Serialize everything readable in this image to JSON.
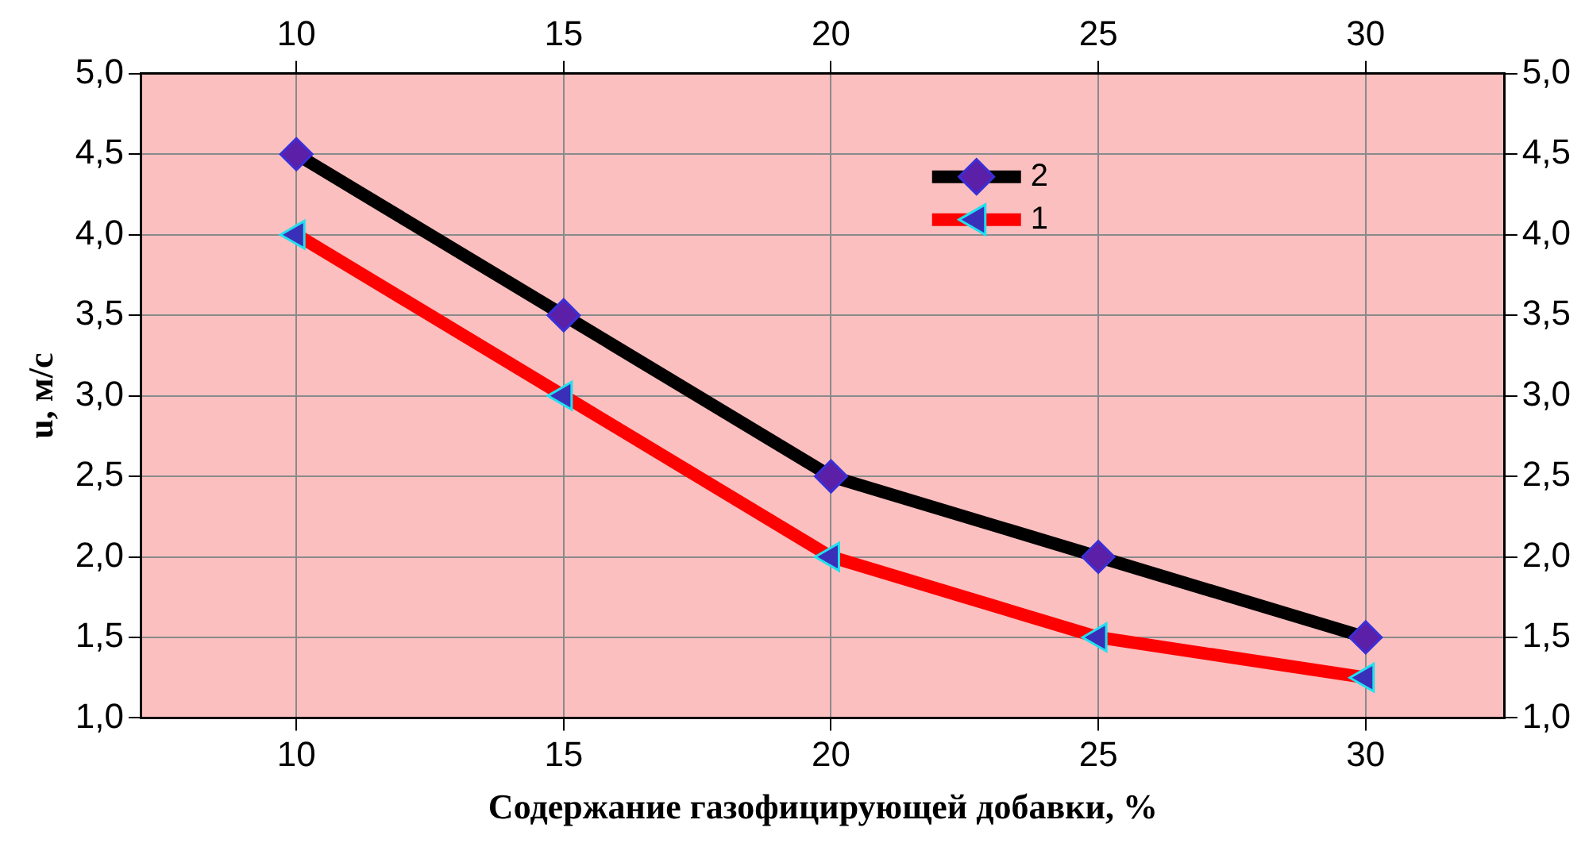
{
  "chart_data": {
    "type": "line",
    "xlabel": "Содержание газофицирующей добавки, %",
    "ylabel": "u, м/с",
    "x": [
      10,
      15,
      20,
      25,
      30
    ],
    "series": [
      {
        "name": "2",
        "color": "#000000",
        "marker": "diamond",
        "values": [
          4.5,
          3.5,
          2.5,
          2.0,
          1.5
        ]
      },
      {
        "name": "1",
        "color": "#ff0000",
        "marker": "triangle",
        "values": [
          4.0,
          3.0,
          2.0,
          1.5,
          1.25
        ]
      }
    ],
    "xlim": [
      7.1,
      32.6
    ],
    "xticks": [
      10,
      15,
      20,
      25,
      30
    ],
    "x2lim": [
      7.1,
      32.6
    ],
    "x2ticks": [
      10,
      15,
      20,
      25,
      30
    ],
    "ylim": [
      1,
      5
    ],
    "yticks": [
      {
        "value": 1,
        "label": "1,0"
      },
      {
        "value": 1.5,
        "label": "1,5"
      },
      {
        "value": 2,
        "label": "2,0"
      },
      {
        "value": 2.5,
        "label": "2,5"
      },
      {
        "value": 3,
        "label": "3,0"
      },
      {
        "value": 3.5,
        "label": "3,5"
      },
      {
        "value": 4,
        "label": "4,0"
      },
      {
        "value": 4.5,
        "label": "4,5"
      },
      {
        "value": 5,
        "label": "5,0"
      }
    ],
    "y2lim": [
      1,
      5
    ],
    "y2ticks": [
      {
        "value": 1,
        "label": "1,0"
      },
      {
        "value": 1.5,
        "label": "1,5"
      },
      {
        "value": 2,
        "label": "2,0"
      },
      {
        "value": 2.5,
        "label": "2,5"
      },
      {
        "value": 3,
        "label": "3,0"
      },
      {
        "value": 3.5,
        "label": "3,5"
      },
      {
        "value": 4,
        "label": "4,0"
      },
      {
        "value": 4.5,
        "label": "4,5"
      },
      {
        "value": 5,
        "label": "5,0"
      }
    ],
    "grid": true,
    "legend": "top right",
    "line_style": "solid"
  }
}
